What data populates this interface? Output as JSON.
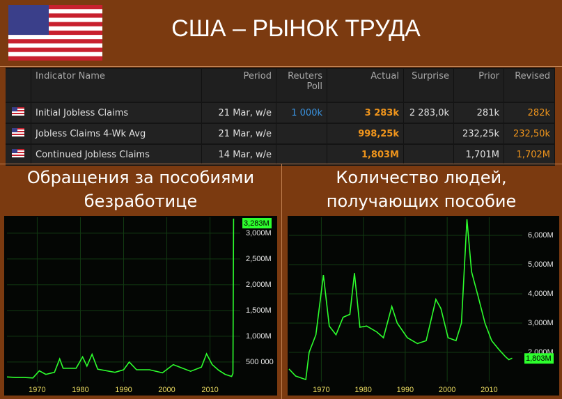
{
  "header": {
    "title": "США – РЫНОК ТРУДА"
  },
  "table": {
    "columns": [
      "Indicator Name",
      "Period",
      "Reuters Poll",
      "Actual",
      "Surprise",
      "Prior",
      "Revised"
    ],
    "rows": [
      [
        "Initial Jobless Claims",
        "21 Mar, w/e",
        "1 000k",
        "3 283k",
        "2 283,0k",
        "281k",
        "282k"
      ],
      [
        "Jobless Claims 4-Wk Avg",
        "21 Mar, w/e",
        null,
        "998,25k",
        null,
        "232,25k",
        "232,50k"
      ],
      [
        "Continued Jobless Claims",
        "14 Mar, w/e",
        null,
        "1,803M",
        null,
        "1,701M",
        "1,702M"
      ]
    ]
  },
  "chart_data": [
    {
      "type": "line",
      "title": "Обращения за пособиями безработице",
      "color": "#2dff2d",
      "grid": true,
      "x": [
        1963,
        1965,
        1967,
        1969,
        1970.5,
        1972,
        1974,
        1975.2,
        1976,
        1979,
        1980.5,
        1981.5,
        1982.7,
        1984,
        1988,
        1990,
        1991.3,
        1993,
        1996,
        1999,
        2001.5,
        2003,
        2005.5,
        2008,
        2009.2,
        2010.5,
        2012,
        2013.5,
        2015,
        2015.3,
        2015.45
      ],
      "values": [
        210000,
        200000,
        200000,
        190000,
        330000,
        260000,
        300000,
        560000,
        380000,
        380000,
        600000,
        420000,
        650000,
        360000,
        300000,
        350000,
        500000,
        350000,
        350000,
        290000,
        450000,
        400000,
        320000,
        400000,
        660000,
        450000,
        340000,
        260000,
        220000,
        280000,
        3283000
      ],
      "value_labels": [
        null,
        null,
        null,
        null,
        null,
        null,
        null,
        null,
        null,
        null,
        null,
        null,
        null,
        null,
        null,
        null,
        null,
        null,
        null,
        null,
        null,
        null,
        null,
        null,
        null,
        null,
        null,
        null,
        null,
        null,
        "3,283M"
      ],
      "xlim": [
        1963,
        2017
      ],
      "xticks": [
        1970,
        1980,
        1990,
        2000,
        2010
      ],
      "ylim": [
        120000,
        3310000
      ],
      "yticks": [
        {
          "value": 500000,
          "label": "500 000"
        },
        {
          "value": 1000000,
          "label": "1,000M"
        },
        {
          "value": 1500000,
          "label": "1,500M"
        },
        {
          "value": 2000000,
          "label": "2,000M"
        },
        {
          "value": 2500000,
          "label": "2,500M"
        },
        {
          "value": 3000000,
          "label": "3,000M"
        }
      ]
    },
    {
      "type": "line",
      "title": "Количество людей, получающих пособие",
      "color": "#2dff2d",
      "grid": true,
      "x": [
        1962.3,
        1963.9,
        1966.3,
        1967.1,
        1968.7,
        1970.5,
        1971.9,
        1973.5,
        1975.2,
        1976.8,
        1977.9,
        1979.2,
        1980.8,
        1983.2,
        1984.8,
        1986.8,
        1988.1,
        1990.5,
        1992.9,
        1995.0,
        1997.3,
        1998.5,
        2000.2,
        2002.1,
        2003.4,
        2004.7,
        2005.8,
        2007.4,
        2009.0,
        2010.6,
        2012.3,
        2013.9,
        2014.7,
        2015.5
      ],
      "values": [
        1430000,
        1190000,
        1070000,
        2000000,
        2600000,
        4640000,
        2900000,
        2600000,
        3200000,
        3300000,
        4710000,
        2860000,
        2900000,
        2700000,
        2500000,
        3570000,
        3000000,
        2500000,
        2300000,
        2400000,
        3810000,
        3500000,
        2500000,
        2400000,
        3000000,
        6550000,
        4760000,
        3900000,
        3000000,
        2400000,
        2100000,
        1850000,
        1750000,
        1803000
      ],
      "value_labels": [
        null,
        null,
        null,
        null,
        null,
        null,
        null,
        null,
        null,
        null,
        null,
        null,
        null,
        null,
        null,
        null,
        null,
        null,
        null,
        null,
        null,
        null,
        null,
        null,
        null,
        null,
        null,
        null,
        null,
        null,
        null,
        null,
        null,
        "1,803M"
      ],
      "xlim": [
        1962.3,
        2017.9
      ],
      "xticks": [
        1970,
        1980,
        1990,
        2000,
        2010
      ],
      "ylim": [
        1000000,
        6620000
      ],
      "yticks": [
        {
          "value": 2000000,
          "label": "2,000M"
        },
        {
          "value": 3000000,
          "label": "3,000M"
        },
        {
          "value": 4000000,
          "label": "4,000M"
        },
        {
          "value": 5000000,
          "label": "5,000M"
        },
        {
          "value": 6000000,
          "label": "6,000M"
        }
      ]
    }
  ]
}
